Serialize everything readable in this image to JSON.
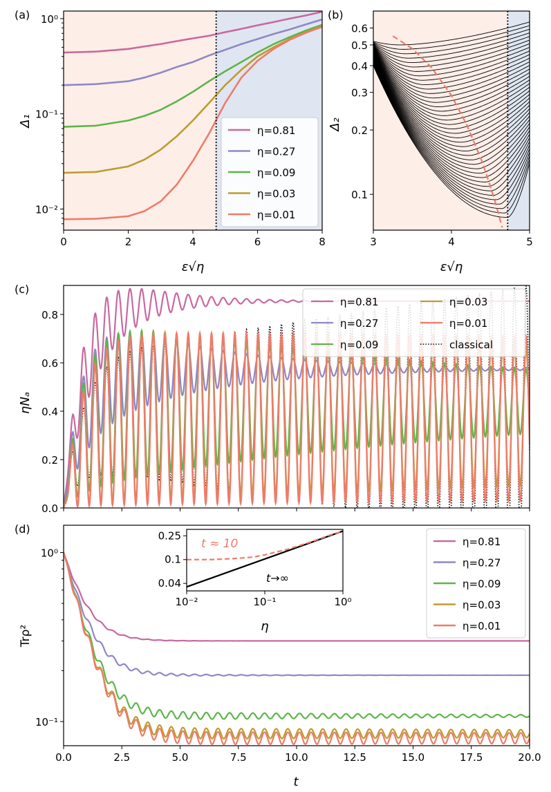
{
  "chart_data": [
    {
      "id": "a",
      "type": "line",
      "panel_label": "(a)",
      "xlabel": "ε√η",
      "ylabel": "Δ₁",
      "yscale": "log",
      "xlim": [
        0,
        8
      ],
      "ylim": [
        0.006,
        1.2
      ],
      "xticks": [
        "0",
        "2",
        "4",
        "6",
        "8"
      ],
      "yticks": [
        {
          "v": 1,
          "label": "10⁰"
        },
        {
          "v": 0.1,
          "label": "10⁻¹"
        },
        {
          "v": 0.01,
          "label": "10⁻²"
        }
      ],
      "vline": 4.72,
      "regions": [
        {
          "from": 0,
          "to": 4.72,
          "color": "#fdeee8"
        },
        {
          "from": 4.72,
          "to": 8,
          "color": "#dfe6f1"
        }
      ],
      "legend_position": "lower-right",
      "x": [
        0,
        1,
        2,
        2.5,
        3,
        3.5,
        4,
        4.5,
        5,
        5.5,
        6,
        6.5,
        7,
        7.5,
        8
      ],
      "series": [
        {
          "name": "η=0.81",
          "color": "#c9689f",
          "values": [
            0.44,
            0.45,
            0.48,
            0.51,
            0.54,
            0.58,
            0.62,
            0.66,
            0.72,
            0.78,
            0.85,
            0.92,
            1.0,
            1.08,
            1.18
          ]
        },
        {
          "name": "η=0.27",
          "color": "#8f87c6",
          "values": [
            0.2,
            0.205,
            0.22,
            0.24,
            0.27,
            0.31,
            0.35,
            0.41,
            0.47,
            0.54,
            0.61,
            0.69,
            0.77,
            0.87,
            0.98
          ]
        },
        {
          "name": "η=0.09",
          "color": "#5db548",
          "values": [
            0.073,
            0.075,
            0.085,
            0.095,
            0.11,
            0.135,
            0.17,
            0.22,
            0.28,
            0.35,
            0.44,
            0.54,
            0.64,
            0.75,
            0.86
          ]
        },
        {
          "name": "η=0.03",
          "color": "#bf9b2e",
          "values": [
            0.024,
            0.0245,
            0.028,
            0.033,
            0.042,
            0.058,
            0.085,
            0.13,
            0.2,
            0.29,
            0.4,
            0.5,
            0.61,
            0.72,
            0.83
          ]
        },
        {
          "name": "η=0.01",
          "color": "#ef7b6a",
          "values": [
            0.0078,
            0.0079,
            0.0084,
            0.0095,
            0.012,
            0.018,
            0.032,
            0.062,
            0.13,
            0.24,
            0.36,
            0.48,
            0.6,
            0.71,
            0.82
          ]
        }
      ]
    },
    {
      "id": "b",
      "type": "line",
      "panel_label": "(b)",
      "xlabel": "ε√η",
      "ylabel": "Δ₂",
      "yscale": "log",
      "xlim": [
        3,
        5
      ],
      "ylim": [
        0.068,
        0.72
      ],
      "xticks": [
        "3",
        "4",
        "5"
      ],
      "yticks": [
        {
          "v": 0.6,
          "label": "0.6"
        },
        {
          "v": 0.5,
          "label": "0.5"
        },
        {
          "v": 0.4,
          "label": "0.4"
        },
        {
          "v": 0.3,
          "label": "0.3"
        },
        {
          "v": 0.2,
          "label": "0.2"
        },
        {
          "v": 0.1,
          "label": "0.1"
        }
      ],
      "vline": 4.72,
      "regions": [
        {
          "from": 3,
          "to": 4.72,
          "color": "#fdeee8"
        },
        {
          "from": 4.72,
          "to": 5,
          "color": "#dfe6f1"
        }
      ],
      "family": {
        "count": 40,
        "color": "#000000",
        "start_top": 0.52,
        "start_bottom": 0.4,
        "min_top": 0.5,
        "min_bottom": 0.078,
        "min_x_top": 3.35,
        "min_x_bottom": 4.72,
        "end_top": 0.64,
        "end_bottom": 0.14
      },
      "dashed_curve": {
        "color": "#ef7b6a",
        "x": [
          3.25,
          3.5,
          3.75,
          4.0,
          4.2,
          4.4,
          4.55,
          4.65
        ],
        "values": [
          0.55,
          0.48,
          0.39,
          0.29,
          0.21,
          0.14,
          0.095,
          0.07
        ]
      }
    },
    {
      "id": "c",
      "type": "line",
      "panel_label": "(c)",
      "xlabel": "",
      "ylabel": "ηNₐ",
      "xlim": [
        0,
        20
      ],
      "ylim": [
        0,
        0.92
      ],
      "yticks": [
        "0.0",
        "0.2",
        "0.4",
        "0.6",
        "0.8"
      ],
      "legend_position": "top-right",
      "legend_columns": 2,
      "series": [
        {
          "name": "η=0.81",
          "color": "#c9689f",
          "steady": 0.855,
          "amp0": 0.33,
          "decay": 0.45,
          "rise": 0.9
        },
        {
          "name": "η=0.27",
          "color": "#8f87c6",
          "steady": 0.575,
          "amp0": 0.3,
          "decay": 0.2,
          "rise": 0.8
        },
        {
          "name": "η=0.09",
          "color": "#5db548",
          "steady": 0.44,
          "amp0": 0.36,
          "decay": 0.05,
          "rise": 0.8
        },
        {
          "name": "η=0.03",
          "color": "#bf9b2e",
          "steady": 0.38,
          "amp0": 0.36,
          "decay": 0.012,
          "rise": 0.8
        },
        {
          "name": "η=0.01",
          "color": "#ef7b6a",
          "steady": 0.37,
          "amp0": 0.36,
          "decay": 0.003,
          "rise": 0.8
        },
        {
          "name": "classical",
          "color": "#000000",
          "dotted": true,
          "steady": 0.4,
          "amp0": 0.36,
          "decay": 0.0,
          "rise": 0.8
        }
      ],
      "period": 0.5
    },
    {
      "id": "d",
      "type": "line",
      "panel_label": "(d)",
      "xlabel": "t",
      "ylabel": "Trρ²",
      "yscale": "log",
      "xlim": [
        0,
        20
      ],
      "ylim": [
        0.072,
        1.45
      ],
      "xticks": [
        "0.0",
        "2.5",
        "5.0",
        "7.5",
        "10.0",
        "12.5",
        "15.0",
        "17.5",
        "20.0"
      ],
      "yticks": [
        {
          "v": 1,
          "label": "10⁰"
        },
        {
          "v": 0.1,
          "label": "10⁻¹"
        }
      ],
      "legend_position": "top-right",
      "period": 0.5,
      "series": [
        {
          "name": "η=0.81",
          "color": "#c9689f",
          "steady": 0.3,
          "osc": 0.04,
          "decay": 0.6
        },
        {
          "name": "η=0.27",
          "color": "#8f87c6",
          "steady": 0.188,
          "osc": 0.06,
          "decay": 0.3
        },
        {
          "name": "η=0.09",
          "color": "#5db548",
          "steady": 0.108,
          "osc": 0.07,
          "decay": 0.07
        },
        {
          "name": "η=0.03",
          "color": "#bf9b2e",
          "steady": 0.085,
          "osc": 0.08,
          "decay": 0.02
        },
        {
          "name": "η=0.01",
          "color": "#ef7b6a",
          "steady": 0.08,
          "osc": 0.09,
          "decay": 0.01
        }
      ],
      "inset": {
        "xlabel": "η",
        "xscale": "log",
        "yscale": "log",
        "xlim": [
          0.01,
          1
        ],
        "ylim": [
          0.03,
          0.32
        ],
        "xticks": [
          {
            "v": 0.01,
            "label": "10⁻²"
          },
          {
            "v": 0.1,
            "label": "10⁻¹"
          },
          {
            "v": 1,
            "label": "10⁰"
          }
        ],
        "yticks": [
          {
            "v": 0.25,
            "label": "0.25"
          },
          {
            "v": 0.1,
            "label": "0.1"
          },
          {
            "v": 0.04,
            "label": "0.04"
          }
        ],
        "solid": {
          "name": "t→∞",
          "color": "#000000",
          "x": [
            0.01,
            1
          ],
          "values": [
            0.035,
            0.3
          ]
        },
        "dashed": {
          "name": "t ≈ 10",
          "color": "#ef7b6a",
          "x": [
            0.01,
            0.02,
            0.04,
            0.07,
            0.1,
            0.2,
            0.4,
            0.7,
            1
          ],
          "values": [
            0.1,
            0.1,
            0.104,
            0.11,
            0.12,
            0.15,
            0.2,
            0.26,
            0.3
          ]
        }
      }
    }
  ]
}
